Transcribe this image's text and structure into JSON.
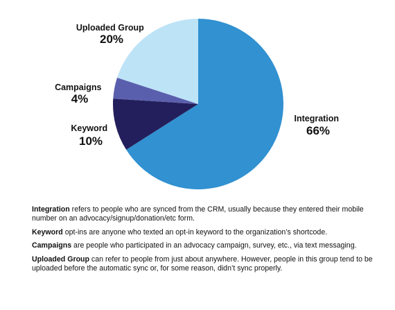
{
  "chart_data": {
    "type": "pie",
    "slices": [
      {
        "label": "Integration",
        "value": 66,
        "display": "66%",
        "color": "#3191d1"
      },
      {
        "label": "Keyword",
        "value": 10,
        "display": "10%",
        "color": "#231f5c"
      },
      {
        "label": "Campaigns",
        "value": 4,
        "display": "4%",
        "color": "#5a5fad"
      },
      {
        "label": "Uploaded Group",
        "value": 20,
        "display": "20%",
        "color": "#bde3f7"
      }
    ]
  },
  "notes": [
    {
      "term": "Integration",
      "text": " refers to people who are synced from the CRM, usually because they entered their mobile number on an advocacy/signup/donation/etc form."
    },
    {
      "term": "Keyword",
      "text": " opt-ins are anyone who texted an opt-in keyword to the organization’s shortcode."
    },
    {
      "term": "Campaigns",
      "text": " are people who participated in an advocacy campaign, survey, etc., via text messaging."
    },
    {
      "term": "Uploaded Group",
      "text": " can refer to people from just about anywhere.  However, people in this group tend to be uploaded before the automatic sync or, for some reason, didn’t sync properly."
    }
  ]
}
